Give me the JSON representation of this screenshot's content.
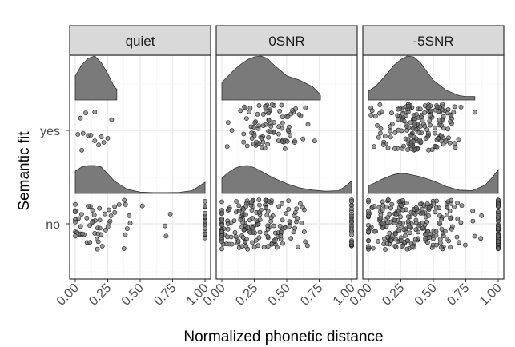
{
  "chart_data": {
    "type": "faceted jittered scatter with density ridges",
    "xlabel": "Normalized phonetic distance",
    "ylabel": "Semantic fit",
    "x_ticks": [
      "0.00",
      "0.25",
      "0.50",
      "0.75",
      "1.00"
    ],
    "xlim": [
      0,
      1
    ],
    "y_categories": [
      "no",
      "yes"
    ],
    "grid": true,
    "theme": "bw",
    "colors": {
      "density_fill": "#7a7a7a",
      "point_fill": "#707070",
      "strip_fill": "#d9d9d9",
      "grid": "#ebebeb"
    },
    "panels": [
      {
        "label": "quiet",
        "density_yes": {
          "x": [
            0.0,
            0.05,
            0.1,
            0.15,
            0.2,
            0.25,
            0.3,
            0.32
          ],
          "y": [
            0.55,
            0.8,
            0.95,
            1.0,
            0.85,
            0.6,
            0.3,
            0.25
          ]
        },
        "density_no": {
          "x": [
            0.0,
            0.05,
            0.1,
            0.15,
            0.2,
            0.25,
            0.3,
            0.4,
            0.5,
            0.6,
            0.7,
            0.8,
            0.9,
            0.95,
            1.0
          ],
          "y": [
            0.8,
            0.95,
            1.0,
            1.0,
            0.95,
            0.7,
            0.45,
            0.15,
            0.05,
            0.03,
            0.03,
            0.04,
            0.1,
            0.25,
            0.4
          ]
        },
        "yes_x": [
          0.02,
          0.04,
          0.06,
          0.05,
          0.1,
          0.12,
          0.15,
          0.18,
          0.2,
          0.22,
          0.25,
          0.28,
          0.15,
          0.08
        ],
        "no_clusters": [
          {
            "center": 0.12,
            "spread": 0.12,
            "count": 45
          },
          {
            "center": 0.4,
            "spread": 0.08,
            "count": 10
          },
          {
            "center": 0.7,
            "spread": 0.05,
            "count": 3
          },
          {
            "center": 1.0,
            "spread": 0.0,
            "count": 15
          }
        ]
      },
      {
        "label": "0SNR",
        "density_yes": {
          "x": [
            0.0,
            0.05,
            0.1,
            0.15,
            0.2,
            0.25,
            0.3,
            0.35,
            0.4,
            0.5,
            0.6,
            0.7,
            0.75,
            0.76
          ],
          "y": [
            0.4,
            0.55,
            0.7,
            0.82,
            0.92,
            0.98,
            1.0,
            0.95,
            0.8,
            0.55,
            0.45,
            0.3,
            0.15,
            0.1
          ]
        },
        "density_no": {
          "x": [
            0.0,
            0.05,
            0.1,
            0.15,
            0.2,
            0.25,
            0.3,
            0.4,
            0.5,
            0.6,
            0.7,
            0.8,
            0.9,
            0.95,
            1.0
          ],
          "y": [
            0.55,
            0.75,
            0.9,
            0.98,
            1.0,
            0.92,
            0.8,
            0.55,
            0.35,
            0.2,
            0.12,
            0.08,
            0.1,
            0.25,
            0.45
          ]
        },
        "yes_x_range": [
          0.02,
          0.75
        ],
        "yes_count": 90,
        "no_clusters": [
          {
            "center": 0.2,
            "spread": 0.18,
            "count": 160
          },
          {
            "center": 0.55,
            "spread": 0.1,
            "count": 20
          },
          {
            "center": 1.0,
            "spread": 0.0,
            "count": 25
          }
        ]
      },
      {
        "label": "-5SNR",
        "density_yes": {
          "x": [
            0.0,
            0.05,
            0.1,
            0.15,
            0.2,
            0.25,
            0.3,
            0.35,
            0.4,
            0.45,
            0.5,
            0.6,
            0.7,
            0.75,
            0.8,
            0.82
          ],
          "y": [
            0.2,
            0.3,
            0.45,
            0.62,
            0.8,
            0.92,
            1.0,
            0.98,
            0.85,
            0.65,
            0.45,
            0.22,
            0.1,
            0.08,
            0.08,
            0.08
          ]
        },
        "density_no": {
          "x": [
            0.0,
            0.05,
            0.1,
            0.15,
            0.2,
            0.25,
            0.3,
            0.4,
            0.5,
            0.6,
            0.7,
            0.8,
            0.9,
            0.95,
            1.0
          ],
          "y": [
            0.28,
            0.38,
            0.5,
            0.6,
            0.68,
            0.72,
            0.7,
            0.6,
            0.45,
            0.25,
            0.12,
            0.1,
            0.3,
            0.55,
            0.85
          ]
        },
        "yes_x_range": [
          0.02,
          0.82
        ],
        "yes_count": 180,
        "no_clusters": [
          {
            "center": 0.28,
            "spread": 0.22,
            "count": 220
          },
          {
            "center": 0.6,
            "spread": 0.06,
            "count": 15
          },
          {
            "center": 1.0,
            "spread": 0.0,
            "count": 60
          }
        ]
      }
    ]
  }
}
